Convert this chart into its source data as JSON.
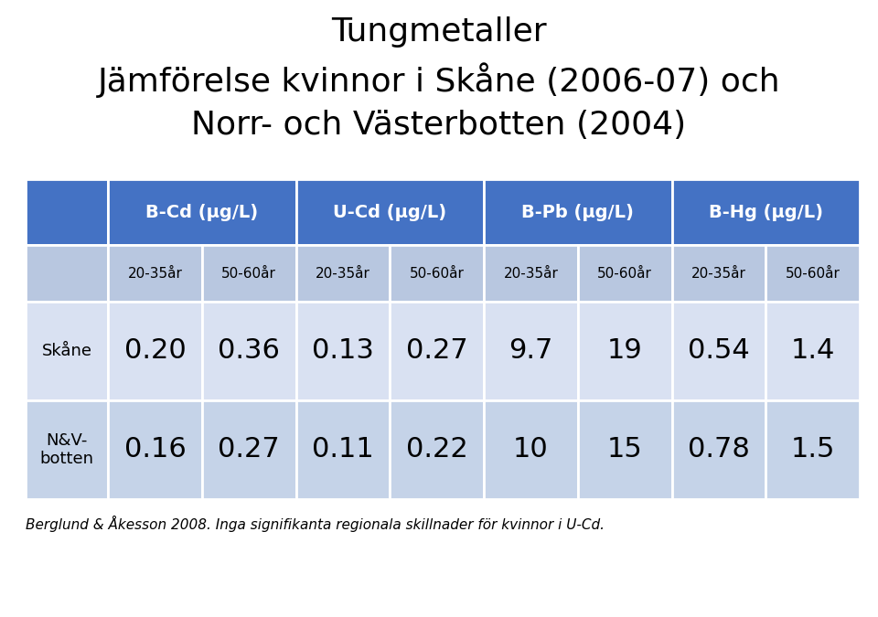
{
  "title_line1": "Tungmetaller",
  "title_line2": "Jämförelse kvinnor i Skåne (2006-07) och",
  "title_line3": "Norr- och Västerbotten (2004)",
  "col_headers": [
    "B-Cd (μg/L)",
    "U-Cd (μg/L)",
    "B-Pb (μg/L)",
    "B-Hg (μg/L)"
  ],
  "subheaders": [
    "20-35år",
    "50-60år",
    "20-35år",
    "50-60år",
    "20-35år",
    "50-60år",
    "20-35år",
    "50-60år"
  ],
  "row_labels": [
    "Skåne",
    "N&V-\nbotten"
  ],
  "data_rows": [
    [
      "0.20",
      "0.36",
      "0.13",
      "0.27",
      "9.7",
      "19",
      "0.54",
      "1.4"
    ],
    [
      "0.16",
      "0.27",
      "0.11",
      "0.22",
      "10",
      "15",
      "0.78",
      "1.5"
    ]
  ],
  "footer": "Berglund & Åkesson 2008. Inga signifikanta regionala skillnader för kvinnor i U-Cd.",
  "header_bg": "#4472C4",
  "subheader_bg": "#B8C7E0",
  "row1_bg": "#D9E1F2",
  "row2_bg": "#C5D3E8",
  "header_text_color": "#FFFFFF",
  "body_text_color": "#000000",
  "border_color": "#FFFFFF",
  "title_fontsize": 26,
  "header_fontsize": 14,
  "subheader_fontsize": 11,
  "data_fontsize": 22,
  "label_fontsize": 13,
  "footer_fontsize": 11
}
